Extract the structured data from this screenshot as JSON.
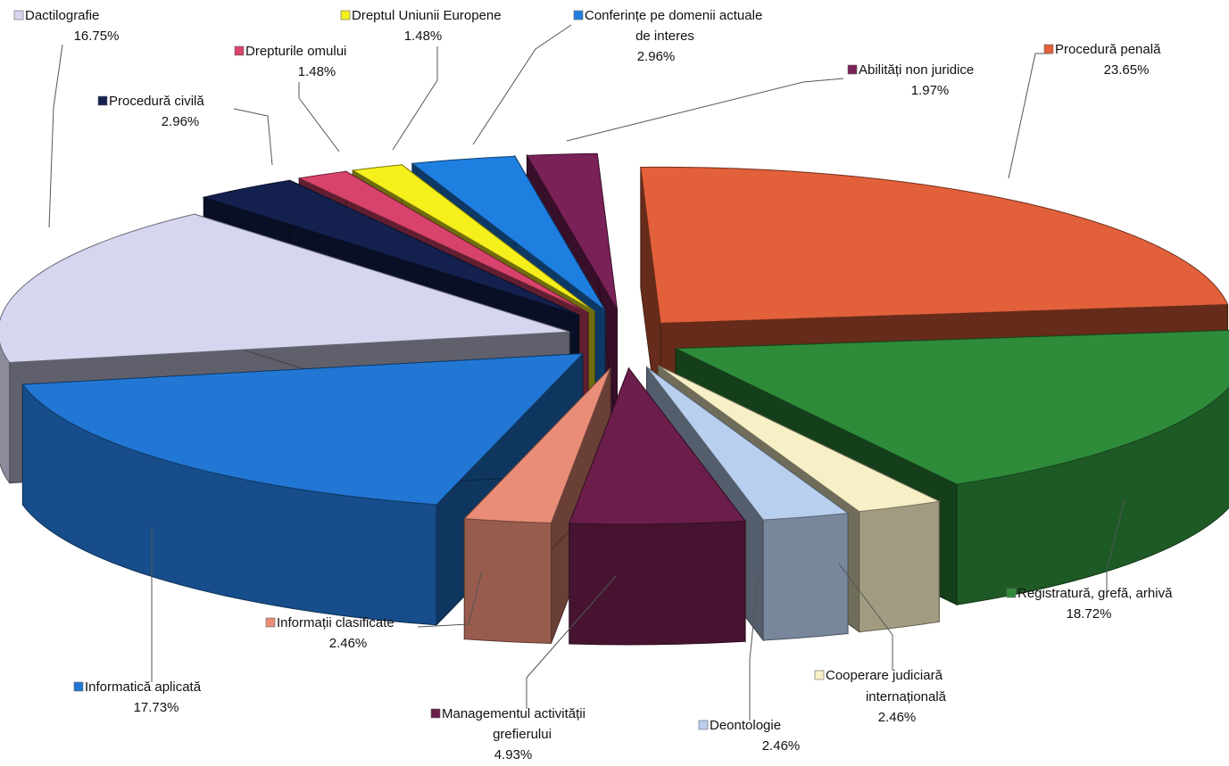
{
  "chart_data": {
    "type": "pie",
    "style": "exploded-3d",
    "legend": "callout-labels",
    "slices": [
      {
        "label": "Procedură penală",
        "value": 23.65,
        "value_label": "23.65%",
        "color": "#e2603a"
      },
      {
        "label": "Registratură, grefă, arhivă",
        "value": 18.72,
        "value_label": "18.72%",
        "color": "#2e8b3a"
      },
      {
        "label": "Cooperare judiciară internațională",
        "value": 2.46,
        "value_label": "2.46%",
        "color": "#f7f0c6"
      },
      {
        "label": "Deontologie",
        "value": 2.46,
        "value_label": "2.46%",
        "color": "#b8cfee"
      },
      {
        "label": "Managementul activității grefierului",
        "value": 4.93,
        "value_label": "4.93%",
        "color": "#6b1e4a"
      },
      {
        "label": "Informații clasificate",
        "value": 2.46,
        "value_label": "2.46%",
        "color": "#ea8d78"
      },
      {
        "label": "Informatică aplicată",
        "value": 17.73,
        "value_label": "17.73%",
        "color": "#2277d4"
      },
      {
        "label": "Dactilografie",
        "value": 16.75,
        "value_label": "16.75%",
        "color": "#d6d6f0"
      },
      {
        "label": "Procedură civilă",
        "value": 2.96,
        "value_label": "2.96%",
        "color": "#14214f"
      },
      {
        "label": "Drepturile omului",
        "value": 1.48,
        "value_label": "1.48%",
        "color": "#d8436b"
      },
      {
        "label": "Dreptul Uniunii Europene",
        "value": 1.48,
        "value_label": "1.48%",
        "color": "#f5ef1c"
      },
      {
        "label": "Conferințe pe domenii actuale de interes",
        "value": 2.96,
        "value_label": "2.96%",
        "color": "#1f7fe0"
      },
      {
        "label": "Abilități non juridice",
        "value": 1.97,
        "value_label": "1.97%",
        "color": "#7a2158"
      }
    ]
  }
}
